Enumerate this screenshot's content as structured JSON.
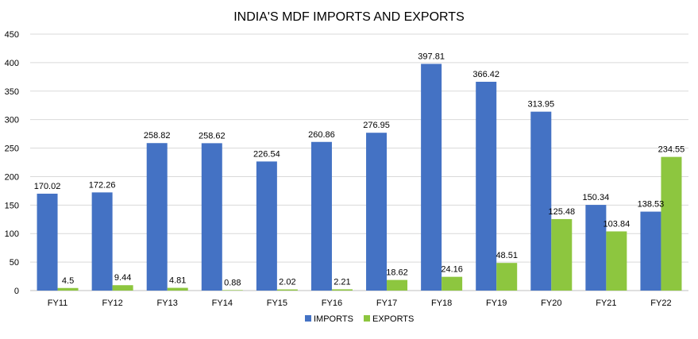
{
  "chart_data": {
    "type": "bar",
    "title": "INDIA'S MDF IMPORTS AND EXPORTS",
    "categories": [
      "FY11",
      "FY12",
      "FY13",
      "FY14",
      "FY15",
      "FY16",
      "FY17",
      "FY18",
      "FY19",
      "FY20",
      "FY21",
      "FY22"
    ],
    "series": [
      {
        "name": "IMPORTS",
        "color": "#4472C4",
        "values": [
          170.02,
          172.26,
          258.82,
          258.62,
          226.54,
          260.86,
          276.95,
          397.81,
          366.42,
          313.95,
          150.34,
          138.53
        ],
        "labels": [
          "170.02",
          "172.26",
          "258.82",
          "258.62",
          "226.54",
          "260.86",
          "276.95",
          "397.81",
          "366.42",
          "313.95",
          "150.34",
          "138.53"
        ]
      },
      {
        "name": "EXPORTS",
        "color": "#8DC63F",
        "values": [
          4.5,
          9.44,
          4.81,
          0.88,
          2.02,
          2.21,
          18.62,
          24.16,
          48.51,
          125.48,
          103.84,
          234.55
        ],
        "labels": [
          "4.5",
          "9.44",
          "4.81",
          "0.88",
          "2.02",
          "2.21",
          "18.62",
          "24.16",
          "48.51",
          "125.48",
          "103.84",
          "234.55"
        ]
      }
    ],
    "ylim": [
      0,
      450
    ],
    "yticks": [
      0,
      50,
      100,
      150,
      200,
      250,
      300,
      350,
      400,
      450
    ],
    "xlabel": "",
    "ylabel": "",
    "grid": true,
    "legend": "bottom-center"
  }
}
